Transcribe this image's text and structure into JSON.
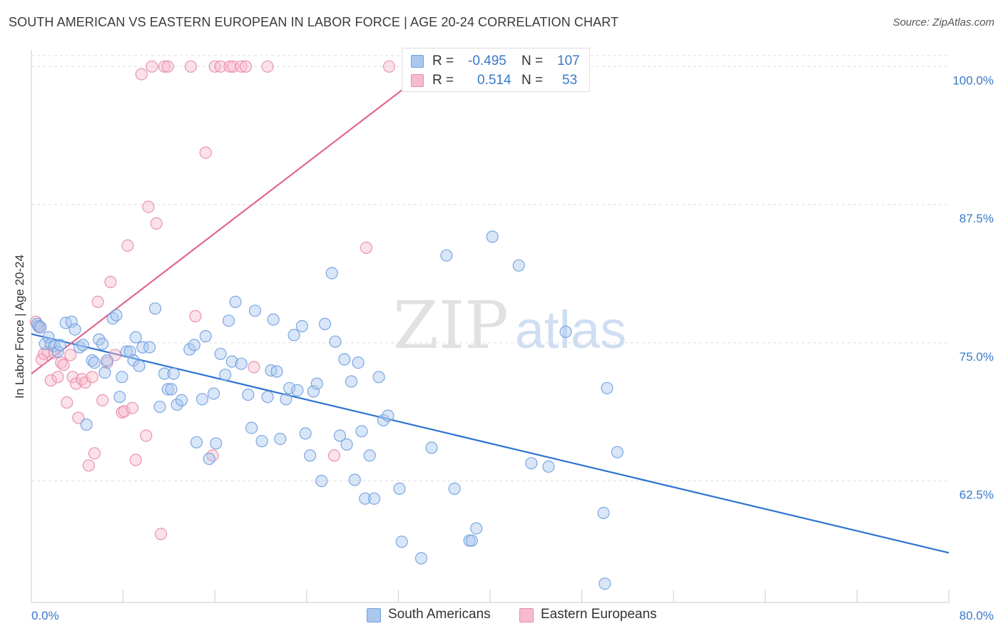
{
  "header": {
    "title": "SOUTH AMERICAN VS EASTERN EUROPEAN IN LABOR FORCE | AGE 20-24 CORRELATION CHART",
    "source": "Source: ZipAtlas.com"
  },
  "watermark": {
    "zip": "ZIP",
    "atlas": "atlas"
  },
  "legend": {
    "r_label": "R =",
    "n_label": "N =",
    "series": [
      {
        "name": "South Americans",
        "r": "-0.495",
        "n": "107",
        "fill": "#aac7ee",
        "stroke": "#6f9fe0"
      },
      {
        "name": "Eastern Europeans",
        "r": "0.514",
        "n": "53",
        "fill": "#f6bccd",
        "stroke": "#e88aa8"
      }
    ]
  },
  "colors": {
    "blue_line": "#2e74d0",
    "pink_line": "#e0668f",
    "tick_text": "#3a78c9",
    "grid": "#dddddd"
  },
  "chart_data": {
    "type": "scatter",
    "title": "SOUTH AMERICAN VS EASTERN EUROPEAN IN LABOR FORCE | AGE 20-24 CORRELATION CHART",
    "xlabel": "",
    "ylabel": "In Labor Force | Age 20-24",
    "xlim": [
      0,
      80
    ],
    "ylim": [
      51.5,
      101.5
    ],
    "x_tick_labels": [
      "0.0%",
      "80.0%"
    ],
    "y_ticks": [
      62.5,
      75.0,
      87.5,
      100.0
    ],
    "y_tick_labels": [
      "62.5%",
      "75.0%",
      "87.5%",
      "100.0%"
    ],
    "grid": true,
    "series": [
      {
        "name": "South Americans",
        "r": -0.495,
        "n": 107,
        "trend": {
          "x": [
            0,
            80
          ],
          "y": [
            75.8,
            56.0
          ]
        },
        "points": [
          [
            0.5,
            76.7
          ],
          [
            0.6,
            76.5
          ],
          [
            0.8,
            76.4
          ],
          [
            1.2,
            74.9
          ],
          [
            1.5,
            75.5
          ],
          [
            1.7,
            74.9
          ],
          [
            2.0,
            74.7
          ],
          [
            2.3,
            74.2
          ],
          [
            2.5,
            74.8
          ],
          [
            3.0,
            76.8
          ],
          [
            3.5,
            76.9
          ],
          [
            3.8,
            76.2
          ],
          [
            4.2,
            74.6
          ],
          [
            4.5,
            74.8
          ],
          [
            4.8,
            67.6
          ],
          [
            5.3,
            73.4
          ],
          [
            5.5,
            73.2
          ],
          [
            5.9,
            75.3
          ],
          [
            6.2,
            74.9
          ],
          [
            6.4,
            72.3
          ],
          [
            6.6,
            73.4
          ],
          [
            7.1,
            77.2
          ],
          [
            7.4,
            77.5
          ],
          [
            7.7,
            70.1
          ],
          [
            7.9,
            71.9
          ],
          [
            8.3,
            74.2
          ],
          [
            8.6,
            74.2
          ],
          [
            8.9,
            73.4
          ],
          [
            9.1,
            75.5
          ],
          [
            9.4,
            72.9
          ],
          [
            9.7,
            74.6
          ],
          [
            10.3,
            74.6
          ],
          [
            10.8,
            78.1
          ],
          [
            11.2,
            69.2
          ],
          [
            11.6,
            72.2
          ],
          [
            11.9,
            70.8
          ],
          [
            12.2,
            70.8
          ],
          [
            12.4,
            72.2
          ],
          [
            12.7,
            69.4
          ],
          [
            13.1,
            69.8
          ],
          [
            13.8,
            74.4
          ],
          [
            14.2,
            74.8
          ],
          [
            14.4,
            66.0
          ],
          [
            14.9,
            69.9
          ],
          [
            15.2,
            75.6
          ],
          [
            15.5,
            64.5
          ],
          [
            15.9,
            70.4
          ],
          [
            16.1,
            65.9
          ],
          [
            16.5,
            74.0
          ],
          [
            16.9,
            72.1
          ],
          [
            17.2,
            77.0
          ],
          [
            17.5,
            73.3
          ],
          [
            17.8,
            78.7
          ],
          [
            18.3,
            73.1
          ],
          [
            18.9,
            70.3
          ],
          [
            19.2,
            67.3
          ],
          [
            19.5,
            77.9
          ],
          [
            20.1,
            66.1
          ],
          [
            20.6,
            70.1
          ],
          [
            20.9,
            72.5
          ],
          [
            21.1,
            77.1
          ],
          [
            21.4,
            72.4
          ],
          [
            21.7,
            66.3
          ],
          [
            22.2,
            69.9
          ],
          [
            22.5,
            70.9
          ],
          [
            22.9,
            75.7
          ],
          [
            23.2,
            70.7
          ],
          [
            23.6,
            76.5
          ],
          [
            23.9,
            66.8
          ],
          [
            24.3,
            64.8
          ],
          [
            24.6,
            70.6
          ],
          [
            24.9,
            71.3
          ],
          [
            25.3,
            62.5
          ],
          [
            25.6,
            76.7
          ],
          [
            26.2,
            81.3
          ],
          [
            26.5,
            75.1
          ],
          [
            26.9,
            66.6
          ],
          [
            27.3,
            73.5
          ],
          [
            27.5,
            65.8
          ],
          [
            27.9,
            71.5
          ],
          [
            28.2,
            62.6
          ],
          [
            28.5,
            73.2
          ],
          [
            28.8,
            67.0
          ],
          [
            29.1,
            60.9
          ],
          [
            29.5,
            64.8
          ],
          [
            29.9,
            60.9
          ],
          [
            30.3,
            71.9
          ],
          [
            30.7,
            68.0
          ],
          [
            31.1,
            68.4
          ],
          [
            32.1,
            61.8
          ],
          [
            32.3,
            57.0
          ],
          [
            34.0,
            55.5
          ],
          [
            34.9,
            65.5
          ],
          [
            36.2,
            82.9
          ],
          [
            36.9,
            61.8
          ],
          [
            38.2,
            57.1
          ],
          [
            38.4,
            57.1
          ],
          [
            38.8,
            58.2
          ],
          [
            40.2,
            84.6
          ],
          [
            42.5,
            82.0
          ],
          [
            43.6,
            64.1
          ],
          [
            45.1,
            63.8
          ],
          [
            46.6,
            76.0
          ],
          [
            49.9,
            59.6
          ],
          [
            50.0,
            53.2
          ],
          [
            50.2,
            70.9
          ],
          [
            51.1,
            65.1
          ]
        ]
      },
      {
        "name": "Eastern Europeans",
        "r": 0.514,
        "n": 53,
        "trend": {
          "x": [
            0,
            35
          ],
          "y": [
            72.2,
            100.0
          ]
        },
        "points": [
          [
            0.4,
            76.9
          ],
          [
            0.7,
            76.4
          ],
          [
            0.9,
            73.5
          ],
          [
            1.1,
            74.0
          ],
          [
            1.4,
            74.2
          ],
          [
            1.7,
            71.6
          ],
          [
            2.0,
            74.1
          ],
          [
            2.3,
            71.9
          ],
          [
            2.6,
            73.2
          ],
          [
            2.8,
            73.0
          ],
          [
            3.1,
            69.6
          ],
          [
            3.4,
            73.9
          ],
          [
            3.6,
            71.9
          ],
          [
            3.9,
            71.3
          ],
          [
            4.1,
            68.2
          ],
          [
            4.4,
            71.7
          ],
          [
            4.7,
            71.4
          ],
          [
            5.0,
            63.9
          ],
          [
            5.3,
            71.9
          ],
          [
            5.5,
            65.0
          ],
          [
            5.8,
            78.7
          ],
          [
            6.2,
            69.8
          ],
          [
            6.6,
            73.2
          ],
          [
            6.9,
            80.5
          ],
          [
            7.3,
            73.9
          ],
          [
            7.9,
            68.7
          ],
          [
            8.1,
            68.8
          ],
          [
            8.4,
            83.8
          ],
          [
            8.8,
            69.1
          ],
          [
            9.1,
            64.4
          ],
          [
            9.6,
            99.3
          ],
          [
            10.0,
            66.6
          ],
          [
            10.2,
            87.3
          ],
          [
            10.5,
            100.0
          ],
          [
            10.9,
            85.8
          ],
          [
            11.3,
            57.7
          ],
          [
            11.6,
            100.0
          ],
          [
            11.9,
            100.0
          ],
          [
            13.9,
            100.0
          ],
          [
            14.3,
            77.4
          ],
          [
            15.2,
            92.2
          ],
          [
            15.8,
            64.8
          ],
          [
            16.0,
            100.0
          ],
          [
            16.5,
            100.0
          ],
          [
            17.3,
            100.0
          ],
          [
            17.6,
            100.0
          ],
          [
            18.3,
            100.0
          ],
          [
            18.7,
            100.0
          ],
          [
            19.4,
            72.8
          ],
          [
            20.6,
            100.0
          ],
          [
            26.4,
            64.8
          ],
          [
            29.2,
            83.6
          ],
          [
            31.2,
            100.0
          ]
        ]
      }
    ]
  }
}
